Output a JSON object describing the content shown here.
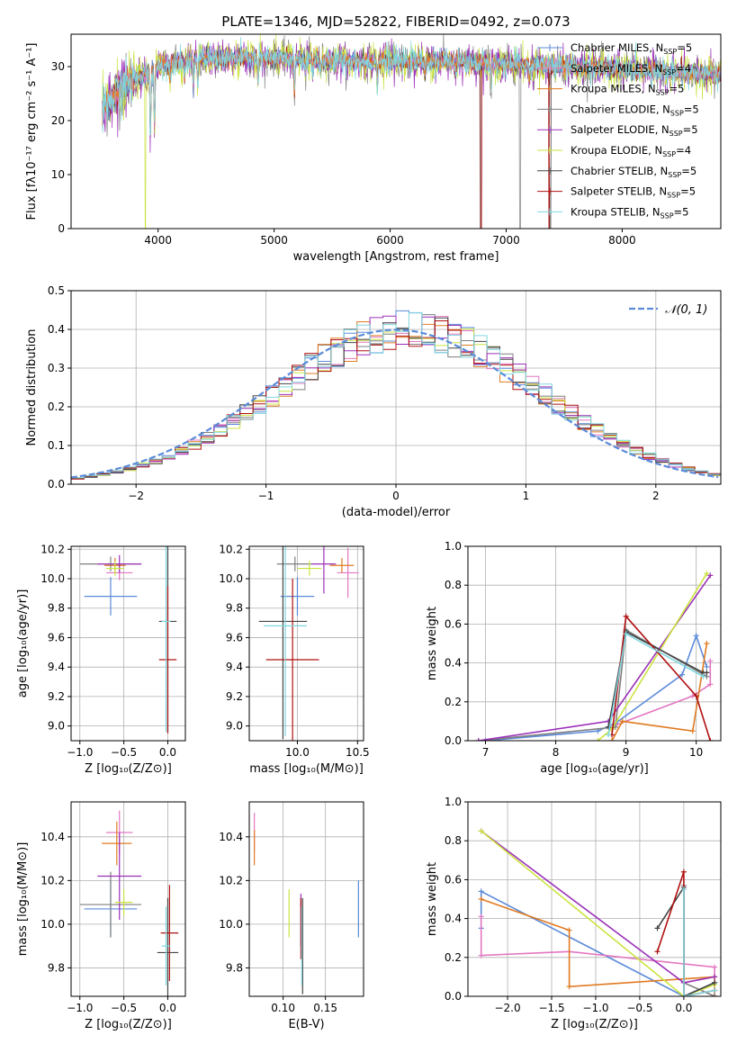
{
  "colors": {
    "chabrier_miles": "#5b8bd9",
    "salpeter_miles": "#e377c2",
    "kroupa_miles": "#e07b22",
    "chabrier_elodie": "#7f7f7f",
    "salpeter_elodie": "#9b30b8",
    "kroupa_elodie": "#cce340",
    "chabrier_stelib": "#444444",
    "salpeter_stelib": "#b01010",
    "kroupa_stelib": "#7fd7e0",
    "normal": "#5b8bd9"
  },
  "chart_data": [
    {
      "id": "spectrum",
      "type": "line",
      "title": "PLATE=1346, MJD=52822, FIBERID=0492, z=0.073",
      "xlabel": "wavelength [Angstrom, rest frame]",
      "ylabel": "Flux [fλ10⁻¹⁷ erg cm⁻² s⁻¹ A⁻¹]",
      "xlim": [
        3250,
        8850
      ],
      "ylim": [
        0,
        36
      ],
      "xticks": [
        "4000",
        "5000",
        "6000",
        "7000",
        "8000"
      ],
      "xtick_values": [
        4000,
        5000,
        6000,
        7000,
        8000
      ],
      "yticks": [
        "0",
        "10",
        "20",
        "30"
      ],
      "ytick_values": [
        0,
        10,
        20,
        30
      ],
      "legend_position": "top-right",
      "legend": [
        {
          "label": "Chabrier MILES, N",
          "sub": "SSP",
          "tail": "=5",
          "color": "chabrier_miles"
        },
        {
          "label": "Salpeter MILES, N",
          "sub": "SSP",
          "tail": "=4",
          "color": "salpeter_miles"
        },
        {
          "label": "Kroupa MILES, N",
          "sub": "SSP",
          "tail": "=5",
          "color": "kroupa_miles"
        },
        {
          "label": "Chabrier ELODIE, N",
          "sub": "SSP",
          "tail": "=5",
          "color": "chabrier_elodie"
        },
        {
          "label": "Salpeter ELODIE, N",
          "sub": "SSP",
          "tail": "=5",
          "color": "salpeter_elodie"
        },
        {
          "label": "Kroupa ELODIE, N",
          "sub": "SSP",
          "tail": "=4",
          "color": "kroupa_elodie"
        },
        {
          "label": "Chabrier STELIB, N",
          "sub": "SSP",
          "tail": "=5",
          "color": "chabrier_stelib"
        },
        {
          "label": "Salpeter STELIB, N",
          "sub": "SSP",
          "tail": "=5",
          "color": "salpeter_stelib"
        },
        {
          "label": "Kroupa STELIB, N",
          "sub": "SSP",
          "tail": "=5",
          "color": "kroupa_stelib"
        }
      ],
      "data_x_range": [
        3520,
        8850
      ],
      "continuum": [
        [
          3520,
          22
        ],
        [
          3600,
          24
        ],
        [
          3700,
          26.5
        ],
        [
          3850,
          28
        ],
        [
          4000,
          30
        ],
        [
          4200,
          31
        ],
        [
          4500,
          31.5
        ],
        [
          5000,
          31.5
        ],
        [
          5500,
          31
        ],
        [
          6000,
          31
        ],
        [
          6500,
          31
        ],
        [
          7000,
          30.5
        ],
        [
          7500,
          30
        ],
        [
          8000,
          29.5
        ],
        [
          8500,
          29
        ],
        [
          8850,
          28.5
        ]
      ],
      "absorption_features": [
        [
          3934,
          17
        ],
        [
          3969,
          18
        ],
        [
          4102,
          27
        ],
        [
          4227,
          27
        ],
        [
          4304,
          26
        ],
        [
          4341,
          27
        ],
        [
          4861,
          27
        ],
        [
          5175,
          25
        ],
        [
          5270,
          28.5
        ],
        [
          5335,
          29
        ],
        [
          5400,
          29
        ],
        [
          5890,
          27
        ],
        [
          6300,
          28
        ],
        [
          6563,
          29
        ],
        [
          6870,
          26
        ],
        [
          7200,
          28
        ]
      ],
      "drops": [
        [
          3890,
          0,
          "kroupa_elodie"
        ],
        [
          6780,
          0,
          "chabrier_elodie"
        ],
        [
          6785,
          0,
          "salpeter_stelib"
        ],
        [
          7120,
          0,
          "chabrier_elodie"
        ],
        [
          7370,
          0,
          "salpeter_stelib"
        ],
        [
          7380,
          0,
          "chabrier_stelib"
        ]
      ]
    },
    {
      "id": "residuals",
      "type": "histogram",
      "xlabel": "(data-model)/error",
      "ylabel": "Normed distribution",
      "xlim": [
        -2.5,
        2.5
      ],
      "ylim": [
        0,
        0.5
      ],
      "xticks": [
        "−2",
        "−1",
        "0",
        "1",
        "2"
      ],
      "xtick_values": [
        -2,
        -1,
        0,
        1,
        2
      ],
      "yticks": [
        "0.0",
        "0.1",
        "0.2",
        "0.3",
        "0.4",
        "0.5"
      ],
      "ytick_values": [
        0,
        0.1,
        0.2,
        0.3,
        0.4,
        0.5
      ],
      "bin_width": 0.1,
      "legend_position": "top-right",
      "curve_label": "𝒩(0, 1)",
      "normal": {
        "mean": 0,
        "sigma": 1
      }
    },
    {
      "id": "age-vs-Z",
      "type": "errorbar",
      "xlabel": "Z [log₁₀(Z/Z⊙)]",
      "ylabel": "age  [log₁₀(age/yr)]",
      "xlim": [
        -1.1,
        0.2
      ],
      "ylim": [
        8.9,
        10.22
      ],
      "xticks": [
        "−1.0",
        "−0.5",
        "0.0"
      ],
      "xtick_values": [
        -1.0,
        -0.5,
        0.0
      ],
      "yticks": [
        "9.0",
        "9.2",
        "9.4",
        "9.6",
        "9.8",
        "10.0",
        "10.2"
      ],
      "ytick_values": [
        9.0,
        9.2,
        9.4,
        9.6,
        9.8,
        10.0,
        10.2
      ],
      "points": [
        {
          "color": "chabrier_miles",
          "x": -0.65,
          "xerr": 0.3,
          "y": 9.88,
          "yerr": 0.13
        },
        {
          "color": "salpeter_miles",
          "x": -0.55,
          "xerr": 0.15,
          "y": 10.04,
          "yerr": 0.05
        },
        {
          "color": "kroupa_miles",
          "x": -0.6,
          "xerr": 0.12,
          "y": 10.09,
          "yerr": 0.05
        },
        {
          "color": "chabrier_elodie",
          "x": -0.65,
          "xerr": 0.35,
          "y": 10.1,
          "yerr": 0.05
        },
        {
          "color": "salpeter_elodie",
          "x": -0.55,
          "xerr": 0.25,
          "y": 10.1,
          "yerr": 0.06
        },
        {
          "color": "kroupa_elodie",
          "x": -0.6,
          "xerr": 0.1,
          "y": 10.07,
          "yerr": 0.05
        },
        {
          "color": "chabrier_stelib",
          "x": 0.0,
          "xerr": 0.1,
          "y": 9.71,
          "yerr": 0.75
        },
        {
          "color": "salpeter_stelib",
          "x": 0.0,
          "xerr": 0.1,
          "y": 9.45,
          "yerr": 0.5
        },
        {
          "color": "kroupa_stelib",
          "x": -0.02,
          "xerr": 0.05,
          "y": 9.71,
          "yerr": 0.75
        }
      ]
    },
    {
      "id": "age-vs-mass",
      "type": "errorbar",
      "xlabel": "mass [log₁₀(M/M⊙)]",
      "ylabel": "",
      "xlim": [
        9.6,
        10.55
      ],
      "ylim": [
        8.9,
        10.22
      ],
      "xticks": [
        "10.0",
        "10.5"
      ],
      "xtick_values": [
        10.0,
        10.5
      ],
      "yticks": [
        "9.0",
        "9.2",
        "9.4",
        "9.6",
        "9.8",
        "10.0",
        "10.2"
      ],
      "ytick_values": [
        9.0,
        9.2,
        9.4,
        9.6,
        9.8,
        10.0,
        10.2
      ],
      "points": [
        {
          "color": "chabrier_miles",
          "x": 10.0,
          "xerr": 0.14,
          "y": 9.88,
          "yerr": 0.13
        },
        {
          "color": "salpeter_miles",
          "x": 10.42,
          "xerr": 0.09,
          "y": 10.04,
          "yerr": 0.17
        },
        {
          "color": "kroupa_miles",
          "x": 10.37,
          "xerr": 0.1,
          "y": 10.09,
          "yerr": 0.05
        },
        {
          "color": "chabrier_elodie",
          "x": 9.98,
          "xerr": 0.15,
          "y": 10.1,
          "yerr": 0.05
        },
        {
          "color": "salpeter_elodie",
          "x": 10.22,
          "xerr": 0.1,
          "y": 10.1,
          "yerr": 0.2
        },
        {
          "color": "kroupa_elodie",
          "x": 10.1,
          "xerr": 0.1,
          "y": 10.07,
          "yerr": 0.05
        },
        {
          "color": "chabrier_stelib",
          "x": 9.88,
          "xerr": 0.2,
          "y": 9.71,
          "yerr": 0.8
        },
        {
          "color": "salpeter_stelib",
          "x": 9.96,
          "xerr": 0.22,
          "y": 9.45,
          "yerr": 0.55
        },
        {
          "color": "kroupa_stelib",
          "x": 9.9,
          "xerr": 0.18,
          "y": 9.68,
          "yerr": 0.75
        }
      ]
    },
    {
      "id": "weight-vs-age",
      "type": "line",
      "xlabel": "age  [log₁₀(age/yr)]",
      "ylabel": "mass weight",
      "xlim": [
        6.75,
        10.35
      ],
      "ylim": [
        0,
        1.0
      ],
      "xticks": [
        "7",
        "8",
        "9",
        "10"
      ],
      "xtick_values": [
        7,
        8,
        9,
        10
      ],
      "yticks": [
        "0.0",
        "0.2",
        "0.4",
        "0.6",
        "0.8",
        "1.0"
      ],
      "ytick_values": [
        0,
        0.2,
        0.4,
        0.6,
        0.8,
        1.0
      ],
      "series": [
        {
          "color": "chabrier_miles",
          "x": [
            7.0,
            8.6,
            8.85,
            9.8,
            10.0,
            10.15
          ],
          "y": [
            0.0,
            0.05,
            0.09,
            0.34,
            0.54,
            0.38
          ]
        },
        {
          "color": "salpeter_miles",
          "x": [
            8.85,
            9.95,
            10.2,
            10.2
          ],
          "y": [
            0.08,
            0.23,
            0.29,
            0.41
          ]
        },
        {
          "color": "kroupa_miles",
          "x": [
            8.8,
            8.95,
            9.95,
            10.15
          ],
          "y": [
            0.0,
            0.1,
            0.05,
            0.5
          ]
        },
        {
          "color": "chabrier_elodie",
          "x": [
            6.9,
            8.85,
            9.0,
            10.15
          ],
          "y": [
            0.0,
            0.07,
            0.57,
            0.33
          ]
        },
        {
          "color": "salpeter_elodie",
          "x": [
            6.9,
            8.75,
            10.2
          ],
          "y": [
            0.0,
            0.1,
            0.85
          ]
        },
        {
          "color": "kroupa_elodie",
          "x": [
            8.6,
            8.8,
            10.15
          ],
          "y": [
            0.0,
            0.06,
            0.86
          ]
        },
        {
          "color": "chabrier_stelib",
          "x": [
            8.75,
            9.0,
            10.1,
            10.15
          ],
          "y": [
            0.07,
            0.56,
            0.35,
            0.35
          ]
        },
        {
          "color": "salpeter_stelib",
          "x": [
            8.8,
            9.0,
            10.0,
            10.2
          ],
          "y": [
            0.03,
            0.64,
            0.23,
            0.0
          ]
        },
        {
          "color": "kroupa_stelib",
          "x": [
            8.75,
            9.0,
            10.1
          ],
          "y": [
            0.03,
            0.55,
            0.33
          ]
        }
      ]
    },
    {
      "id": "mass-vs-Z",
      "type": "errorbar",
      "xlabel": "Z [log₁₀(Z/Z⊙)]",
      "ylabel": "mass [log₁₀(M/M⊙)]",
      "xlim": [
        -1.1,
        0.2
      ],
      "ylim": [
        9.67,
        10.56
      ],
      "xticks": [
        "−1.0",
        "−0.5",
        "0.0"
      ],
      "xtick_values": [
        -1.0,
        -0.5,
        0.0
      ],
      "yticks": [
        "9.8",
        "10.0",
        "10.2",
        "10.4"
      ],
      "ytick_values": [
        9.8,
        10.0,
        10.2,
        10.4
      ],
      "points": [
        {
          "color": "chabrier_miles",
          "x": -0.65,
          "xerr": 0.3,
          "y": 10.07,
          "yerr": 0.13
        },
        {
          "color": "salpeter_miles",
          "x": -0.55,
          "xerr": 0.15,
          "y": 10.42,
          "yerr": 0.1
        },
        {
          "color": "kroupa_miles",
          "x": -0.58,
          "xerr": 0.17,
          "y": 10.37,
          "yerr": 0.1
        },
        {
          "color": "chabrier_elodie",
          "x": -0.65,
          "xerr": 0.35,
          "y": 10.09,
          "yerr": 0.15
        },
        {
          "color": "salpeter_elodie",
          "x": -0.55,
          "xerr": 0.25,
          "y": 10.22,
          "yerr": 0.2
        },
        {
          "color": "kroupa_elodie",
          "x": -0.5,
          "xerr": 0.1,
          "y": 10.1,
          "yerr": 0.06
        },
        {
          "color": "chabrier_stelib",
          "x": 0.0,
          "xerr": 0.12,
          "y": 9.87,
          "yerr": 0.25
        },
        {
          "color": "salpeter_stelib",
          "x": 0.02,
          "xerr": 0.1,
          "y": 9.96,
          "yerr": 0.22
        },
        {
          "color": "kroupa_stelib",
          "x": -0.02,
          "xerr": 0.05,
          "y": 9.9,
          "yerr": 0.18
        }
      ]
    },
    {
      "id": "mass-vs-EBV",
      "type": "errorbar",
      "xlabel": "E(B-V)",
      "ylabel": "",
      "xlim": [
        0.06,
        0.195
      ],
      "ylim": [
        9.67,
        10.56
      ],
      "xticks": [
        "0.10",
        "0.15"
      ],
      "xtick_values": [
        0.1,
        0.15
      ],
      "yticks": [
        "9.8",
        "10.0",
        "10.2",
        "10.4"
      ],
      "ytick_values": [
        9.8,
        10.0,
        10.2,
        10.4
      ],
      "points": [
        {
          "color": "chabrier_miles",
          "x": 0.189,
          "xerr": 0,
          "y": 10.07,
          "yerr": 0.13
        },
        {
          "color": "salpeter_miles",
          "x": 0.066,
          "xerr": 0,
          "y": 10.42,
          "yerr": 0.09
        },
        {
          "color": "kroupa_miles",
          "x": 0.066,
          "xerr": 0,
          "y": 10.35,
          "yerr": 0.08
        },
        {
          "color": "kroupa_elodie",
          "x": 0.107,
          "xerr": 0,
          "y": 10.05,
          "yerr": 0.11
        },
        {
          "color": "salpeter_elodie",
          "x": 0.121,
          "xerr": 0,
          "y": 10.02,
          "yerr": 0.12
        },
        {
          "color": "salpeter_stelib",
          "x": 0.121,
          "xerr": 0,
          "y": 9.98,
          "yerr": 0.14
        },
        {
          "color": "chabrier_stelib",
          "x": 0.123,
          "xerr": 0,
          "y": 9.9,
          "yerr": 0.22
        },
        {
          "color": "kroupa_stelib",
          "x": 0.122,
          "xerr": 0,
          "y": 9.9,
          "yerr": 0.18
        }
      ]
    },
    {
      "id": "weight-vs-Z",
      "type": "line",
      "xlabel": "Z [log₁₀(Z/Z⊙)]",
      "ylabel": "mass weight",
      "xlim": [
        -2.45,
        0.42
      ],
      "ylim": [
        0,
        1.0
      ],
      "xticks": [
        "−2.0",
        "−1.5",
        "−1.0",
        "−0.5",
        "0.0"
      ],
      "xtick_values": [
        -2.0,
        -1.5,
        -1.0,
        -0.5,
        0.0
      ],
      "yticks": [
        "0.0",
        "0.2",
        "0.4",
        "0.6",
        "0.8",
        "1.0"
      ],
      "ytick_values": [
        0,
        0.2,
        0.4,
        0.6,
        0.8,
        1.0
      ],
      "series": [
        {
          "color": "chabrier_miles",
          "x": [
            -2.3,
            -2.3,
            0.0,
            0.35
          ],
          "y": [
            0.35,
            0.54,
            0.0,
            0.07
          ]
        },
        {
          "color": "salpeter_miles",
          "x": [
            -2.3,
            -2.3,
            -1.3,
            0.35,
            0.35
          ],
          "y": [
            0.41,
            0.21,
            0.23,
            0.15,
            0.0
          ]
        },
        {
          "color": "kroupa_miles",
          "x": [
            -2.3,
            -1.3,
            -1.3,
            0.35,
            0.35
          ],
          "y": [
            0.5,
            0.34,
            0.05,
            0.1,
            0.0
          ]
        },
        {
          "color": "chabrier_elodie",
          "x": [
            0.0,
            0.0,
            0.35
          ],
          "y": [
            0.57,
            0.07,
            0.0
          ]
        },
        {
          "color": "salpeter_elodie",
          "x": [
            -2.3,
            0.0,
            0.35
          ],
          "y": [
            0.85,
            0.07,
            0.1
          ]
        },
        {
          "color": "kroupa_elodie",
          "x": [
            -2.3,
            0.0,
            0.35
          ],
          "y": [
            0.85,
            0.0,
            0.06
          ]
        },
        {
          "color": "chabrier_stelib",
          "x": [
            -0.3,
            0.0,
            0.0,
            0.35
          ],
          "y": [
            0.35,
            0.56,
            0.0,
            0.07
          ]
        },
        {
          "color": "salpeter_stelib",
          "x": [
            -0.3,
            0.0,
            0.0,
            0.35
          ],
          "y": [
            0.23,
            0.64,
            0.0,
            0.03
          ]
        },
        {
          "color": "kroupa_stelib",
          "x": [
            0.0,
            0.0,
            0.35
          ],
          "y": [
            0.55,
            0.0,
            0.03
          ]
        }
      ]
    }
  ]
}
